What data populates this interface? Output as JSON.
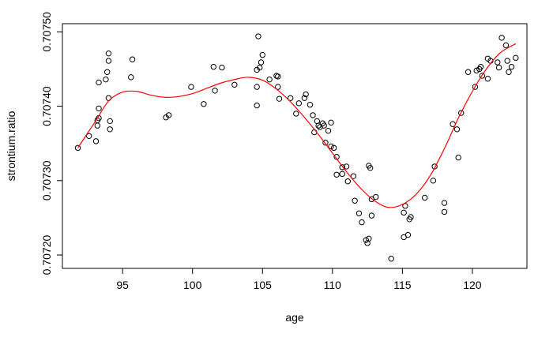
{
  "chart_data": {
    "type": "scatter",
    "xlabel": "age",
    "ylabel": "strontium.ratio",
    "xlim": [
      90.7,
      123.9
    ],
    "ylim": [
      0.707182,
      0.707511
    ],
    "xticks": [
      95,
      100,
      105,
      110,
      115,
      120
    ],
    "yticks": [
      0.7072,
      0.7073,
      0.7074,
      0.7075
    ],
    "ytick_labels": [
      "0.70720",
      "0.70730",
      "0.70740",
      "0.70750"
    ],
    "grid": false,
    "colors": {
      "points": "#000000",
      "fit": "#ff0000",
      "frame": "#000000"
    },
    "points": [
      [
        91.8,
        0.707344
      ],
      [
        92.6,
        0.70736
      ],
      [
        93.1,
        0.707353
      ],
      [
        93.2,
        0.707374
      ],
      [
        93.2,
        0.707381
      ],
      [
        93.3,
        0.707384
      ],
      [
        93.3,
        0.707397
      ],
      [
        93.3,
        0.707432
      ],
      [
        93.8,
        0.707436
      ],
      [
        93.9,
        0.707446
      ],
      [
        94.0,
        0.707461
      ],
      [
        94.0,
        0.707471
      ],
      [
        94.0,
        0.707411
      ],
      [
        94.1,
        0.70738
      ],
      [
        94.1,
        0.707369
      ],
      [
        95.6,
        0.707439
      ],
      [
        95.7,
        0.707463
      ],
      [
        98.1,
        0.707385
      ],
      [
        98.3,
        0.707388
      ],
      [
        99.9,
        0.707426
      ],
      [
        100.8,
        0.707403
      ],
      [
        101.5,
        0.707453
      ],
      [
        101.6,
        0.707421
      ],
      [
        102.1,
        0.707452
      ],
      [
        103.0,
        0.707429
      ],
      [
        104.6,
        0.707426
      ],
      [
        104.6,
        0.707401
      ],
      [
        104.6,
        0.707449
      ],
      [
        104.7,
        0.707494
      ],
      [
        104.8,
        0.707452
      ],
      [
        104.9,
        0.707459
      ],
      [
        105.0,
        0.707469
      ],
      [
        105.5,
        0.707436
      ],
      [
        106.0,
        0.707441
      ],
      [
        106.1,
        0.70744
      ],
      [
        106.1,
        0.707426
      ],
      [
        106.2,
        0.70741
      ],
      [
        107.0,
        0.707411
      ],
      [
        107.4,
        0.70739
      ],
      [
        107.6,
        0.707404
      ],
      [
        108.0,
        0.707411
      ],
      [
        108.1,
        0.707416
      ],
      [
        108.4,
        0.707402
      ],
      [
        108.6,
        0.707388
      ],
      [
        108.7,
        0.707365
      ],
      [
        108.9,
        0.70738
      ],
      [
        109.0,
        0.707374
      ],
      [
        109.1,
        0.707372
      ],
      [
        109.3,
        0.707377
      ],
      [
        109.4,
        0.707374
      ],
      [
        109.5,
        0.707351
      ],
      [
        109.7,
        0.707367
      ],
      [
        109.9,
        0.707346
      ],
      [
        109.9,
        0.707378
      ],
      [
        110.1,
        0.707344
      ],
      [
        110.3,
        0.707332
      ],
      [
        110.3,
        0.707308
      ],
      [
        110.7,
        0.707309
      ],
      [
        110.7,
        0.707318
      ],
      [
        111.0,
        0.707319
      ],
      [
        111.1,
        0.707299
      ],
      [
        111.5,
        0.707306
      ],
      [
        111.6,
        0.707273
      ],
      [
        111.9,
        0.707256
      ],
      [
        112.1,
        0.707244
      ],
      [
        112.4,
        0.70722
      ],
      [
        112.5,
        0.707216
      ],
      [
        112.6,
        0.707222
      ],
      [
        112.6,
        0.70732
      ],
      [
        112.7,
        0.707317
      ],
      [
        112.8,
        0.707275
      ],
      [
        112.8,
        0.707253
      ],
      [
        113.1,
        0.707278
      ],
      [
        114.2,
        0.707195
      ],
      [
        115.1,
        0.707224
      ],
      [
        115.1,
        0.707257
      ],
      [
        115.2,
        0.707266
      ],
      [
        115.4,
        0.707227
      ],
      [
        115.5,
        0.707248
      ],
      [
        115.6,
        0.707251
      ],
      [
        116.6,
        0.707277
      ],
      [
        117.2,
        0.7073
      ],
      [
        117.3,
        0.707319
      ],
      [
        118.0,
        0.707258
      ],
      [
        118.0,
        0.70727
      ],
      [
        118.6,
        0.707376
      ],
      [
        118.9,
        0.707369
      ],
      [
        119.0,
        0.707331
      ],
      [
        119.2,
        0.707391
      ],
      [
        119.7,
        0.707446
      ],
      [
        120.2,
        0.707426
      ],
      [
        120.3,
        0.707448
      ],
      [
        120.5,
        0.70745
      ],
      [
        120.6,
        0.707453
      ],
      [
        120.7,
        0.707441
      ],
      [
        121.1,
        0.707437
      ],
      [
        121.1,
        0.707464
      ],
      [
        121.3,
        0.707461
      ],
      [
        121.8,
        0.707459
      ],
      [
        121.9,
        0.707452
      ],
      [
        122.1,
        0.707492
      ],
      [
        122.4,
        0.707482
      ],
      [
        122.5,
        0.707461
      ],
      [
        122.6,
        0.707446
      ],
      [
        122.8,
        0.707453
      ],
      [
        123.1,
        0.707465
      ]
    ],
    "fit_line": [
      [
        91.8,
        0.707344
      ],
      [
        93.0,
        0.707378
      ],
      [
        94.0,
        0.707407
      ],
      [
        95.0,
        0.707419
      ],
      [
        96.0,
        0.70742
      ],
      [
        97.0,
        0.707415
      ],
      [
        98.0,
        0.707412
      ],
      [
        99.0,
        0.707413
      ],
      [
        100.0,
        0.707417
      ],
      [
        101.0,
        0.707424
      ],
      [
        102.0,
        0.707431
      ],
      [
        103.0,
        0.707436
      ],
      [
        104.0,
        0.707439
      ],
      [
        105.0,
        0.707435
      ],
      [
        106.0,
        0.707423
      ],
      [
        107.0,
        0.707406
      ],
      [
        108.0,
        0.707385
      ],
      [
        109.0,
        0.707362
      ],
      [
        110.0,
        0.707337
      ],
      [
        111.0,
        0.707312
      ],
      [
        112.0,
        0.70729
      ],
      [
        113.0,
        0.707273
      ],
      [
        114.0,
        0.707264
      ],
      [
        115.0,
        0.707268
      ],
      [
        116.0,
        0.707282
      ],
      [
        117.0,
        0.707307
      ],
      [
        118.0,
        0.707343
      ],
      [
        119.0,
        0.707384
      ],
      [
        120.0,
        0.70742
      ],
      [
        121.0,
        0.70745
      ],
      [
        122.0,
        0.707472
      ],
      [
        123.1,
        0.707484
      ]
    ]
  }
}
